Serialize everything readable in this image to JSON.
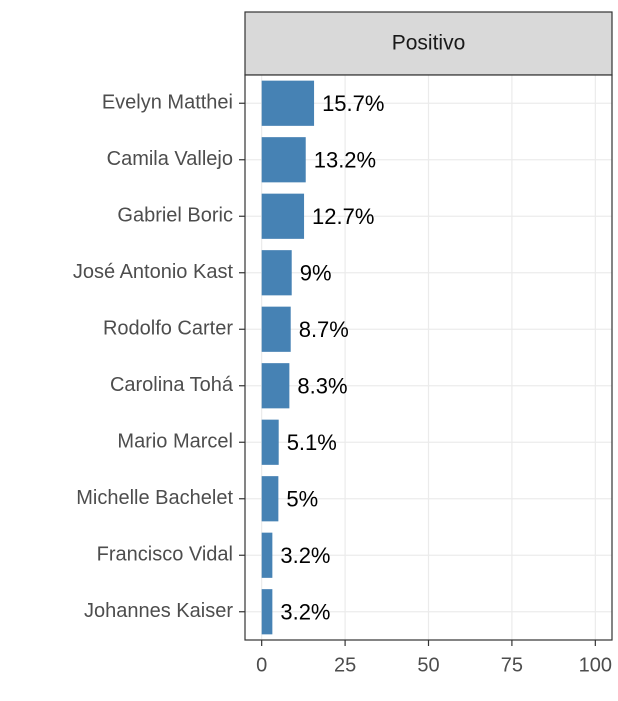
{
  "chart_data": {
    "type": "bar",
    "orientation": "horizontal",
    "facet": "Positivo",
    "categories": [
      "Evelyn Matthei",
      "Camila Vallejo",
      "Gabriel Boric",
      "José Antonio Kast",
      "Rodolfo Carter",
      "Carolina Tohá",
      "Mario Marcel",
      "Michelle Bachelet",
      "Francisco Vidal",
      "Johannes Kaiser"
    ],
    "values": [
      15.7,
      13.2,
      12.7,
      9,
      8.7,
      8.3,
      5.1,
      5,
      3.2,
      3.2
    ],
    "value_labels": [
      "15.7%",
      "13.2%",
      "12.7%",
      "9%",
      "8.7%",
      "8.3%",
      "5.1%",
      "5%",
      "3.2%",
      "3.2%"
    ],
    "color": "#4682b4",
    "xlim": [
      -5,
      105
    ],
    "xticks": [
      0,
      25,
      50,
      75,
      100
    ],
    "grid": true
  }
}
